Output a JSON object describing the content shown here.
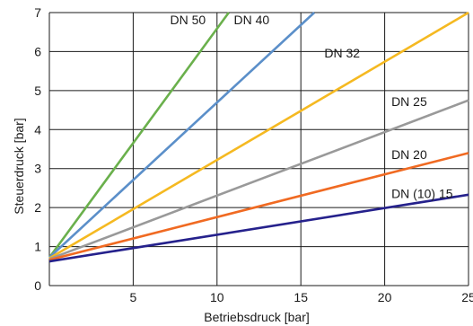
{
  "chart_data": {
    "type": "line",
    "xlabel": "Betriebsdruck [bar]",
    "ylabel": "Steuerdruck [bar]",
    "xlim": [
      0,
      25
    ],
    "ylim": [
      0,
      7
    ],
    "grid": true,
    "x_ticks": [
      {
        "value": 5,
        "label": "5"
      },
      {
        "value": 10,
        "label": "10"
      },
      {
        "value": 15,
        "label": "15"
      },
      {
        "value": 20,
        "label": "20"
      },
      {
        "value": 25,
        "label": "25"
      }
    ],
    "y_ticks": [
      {
        "value": 0,
        "label": "0"
      },
      {
        "value": 1,
        "label": "1"
      },
      {
        "value": 2,
        "label": "2"
      },
      {
        "value": 3,
        "label": "3"
      },
      {
        "value": 4,
        "label": "4"
      },
      {
        "value": 5,
        "label": "5"
      },
      {
        "value": 6,
        "label": "6"
      },
      {
        "value": 7,
        "label": "7"
      }
    ],
    "series": [
      {
        "name": "DN 50",
        "color": "#6ab04c",
        "x": [
          0,
          10.7
        ],
        "y": [
          0.72,
          7.0
        ],
        "label_at": [
          7.2,
          6.7
        ]
      },
      {
        "name": "DN 40",
        "color": "#5b8fc9",
        "x": [
          0,
          15.8
        ],
        "y": [
          0.72,
          7.0
        ],
        "label_at": [
          11.0,
          6.7
        ]
      },
      {
        "name": "DN 32",
        "color": "#f5b921",
        "x": [
          0,
          25
        ],
        "y": [
          0.7,
          7.0
        ],
        "label_at": [
          16.4,
          5.85
        ]
      },
      {
        "name": "DN 25",
        "color": "#999999",
        "x": [
          0,
          25
        ],
        "y": [
          0.68,
          4.75
        ],
        "label_at": [
          20.4,
          4.6
        ]
      },
      {
        "name": "DN 20",
        "color": "#f06a22",
        "x": [
          0,
          25
        ],
        "y": [
          0.66,
          3.4
        ],
        "label_at": [
          20.4,
          3.25
        ]
      },
      {
        "name": "DN (10) 15",
        "color": "#25218c",
        "x": [
          0,
          25
        ],
        "y": [
          0.62,
          2.33
        ],
        "label_at": [
          20.4,
          2.25
        ]
      }
    ]
  }
}
